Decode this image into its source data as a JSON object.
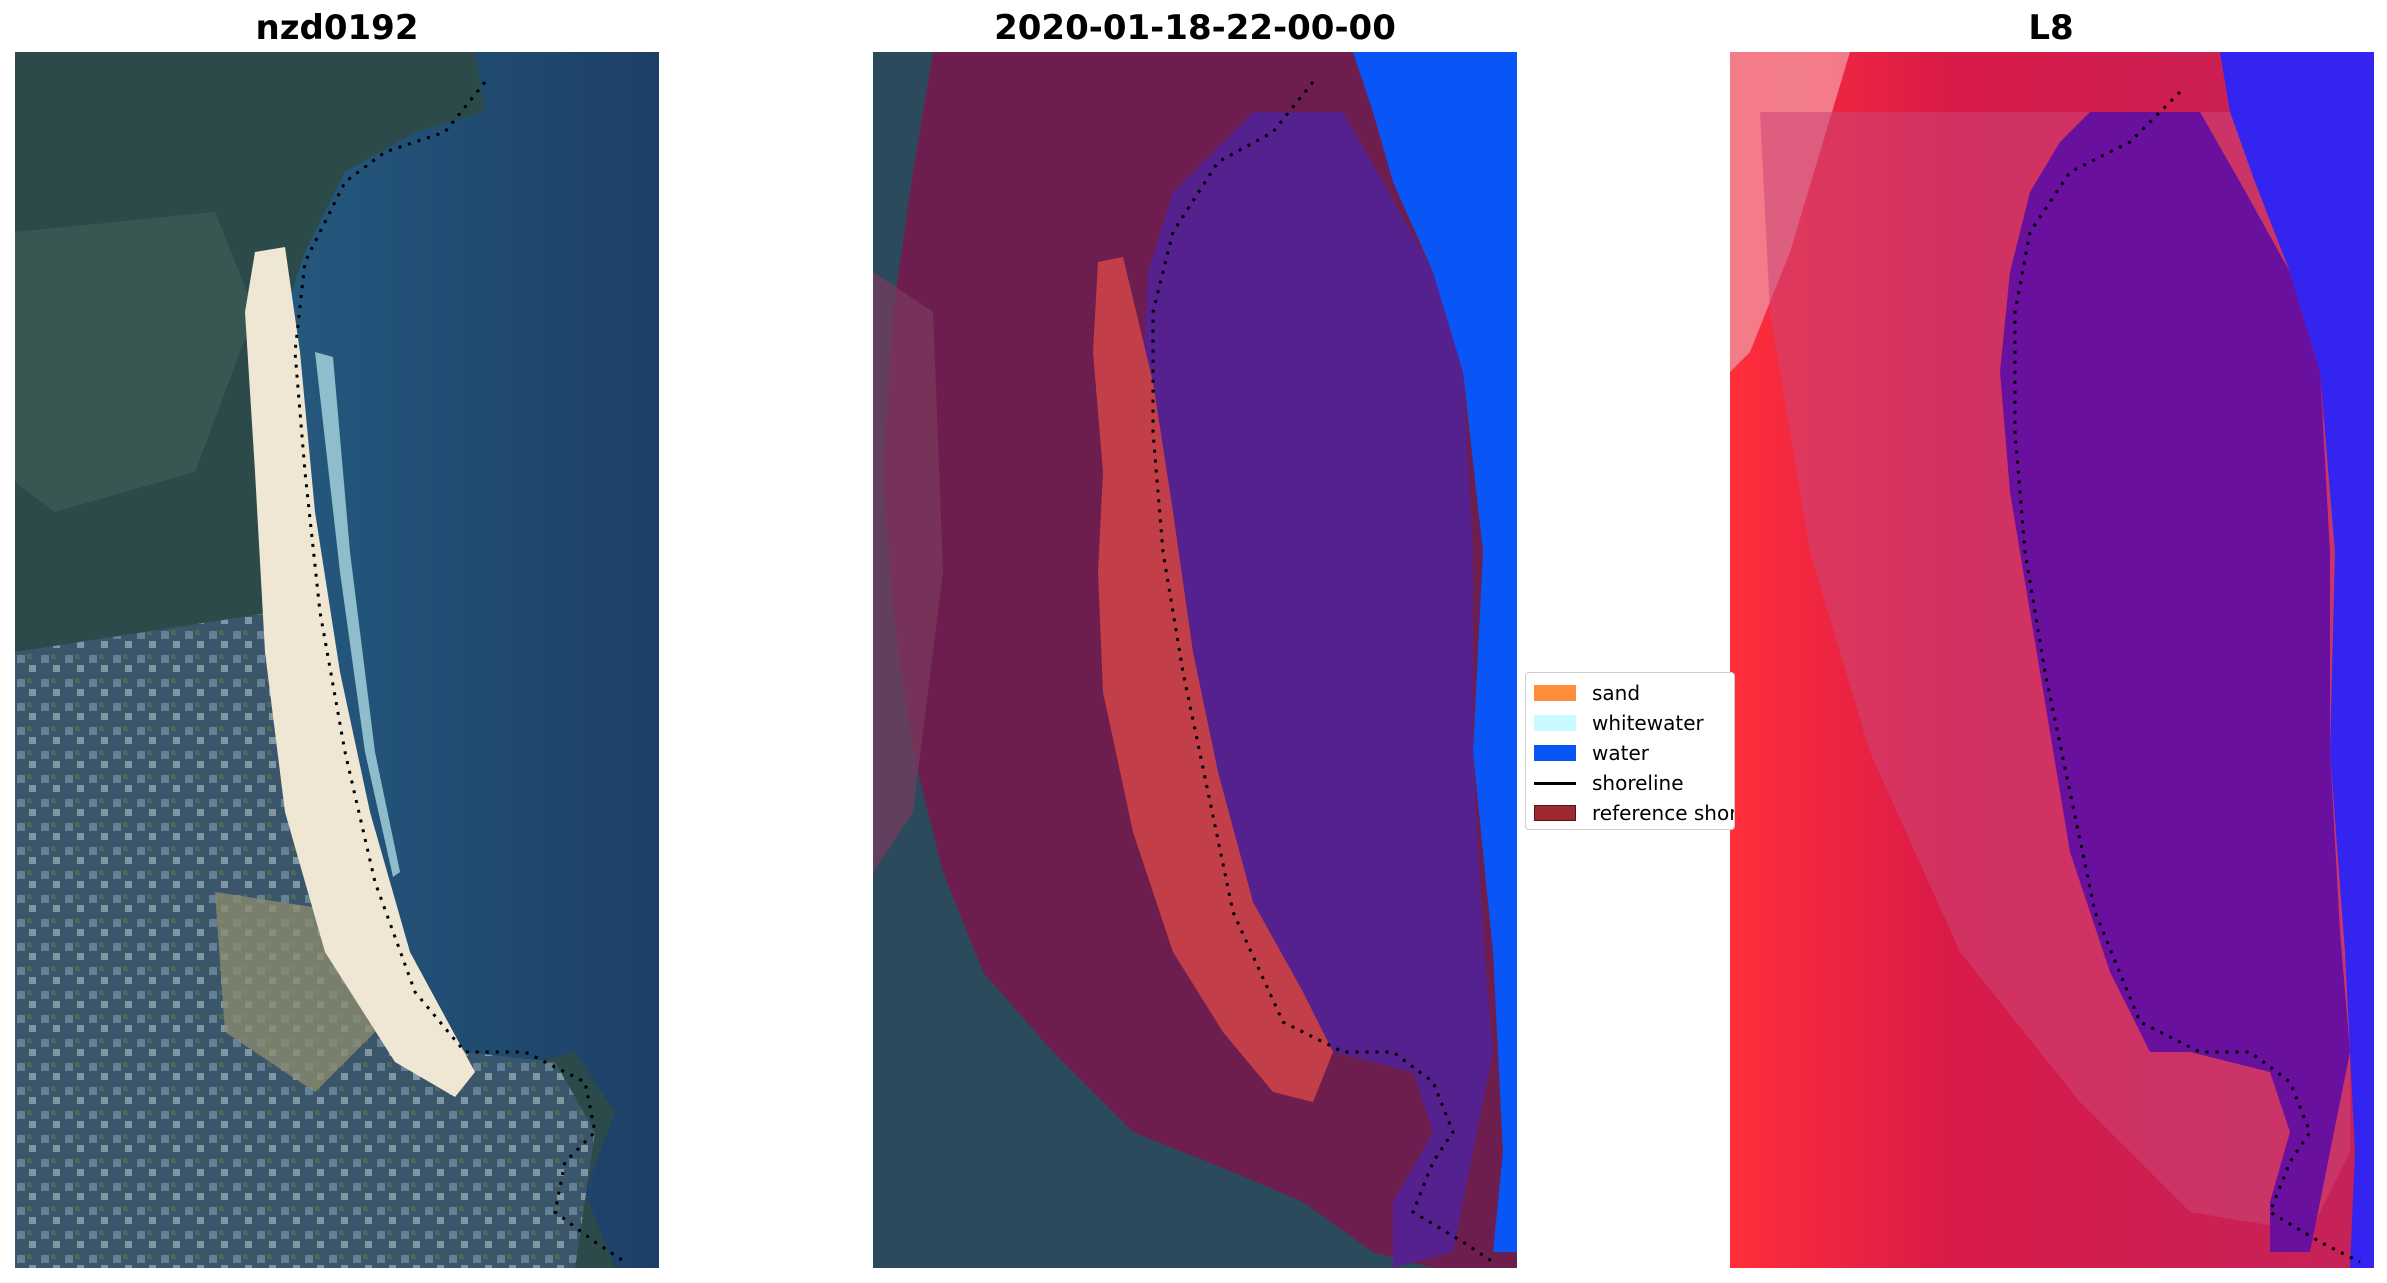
{
  "panels": [
    {
      "title": "nzd0192"
    },
    {
      "title": "2020-01-18-22-00-00"
    },
    {
      "title": "L8"
    }
  ],
  "legend": {
    "items": [
      {
        "label": "sand",
        "color": "#ff8c3a",
        "kind": "patch"
      },
      {
        "label": "whitewater",
        "color": "#c8fbff",
        "kind": "patch"
      },
      {
        "label": "water",
        "color": "#0a55f5",
        "kind": "patch"
      },
      {
        "label": "shoreline",
        "color": "#000000",
        "kind": "line"
      },
      {
        "label": "reference shoreline",
        "color": "#9a2a30",
        "kind": "patch"
      }
    ]
  }
}
